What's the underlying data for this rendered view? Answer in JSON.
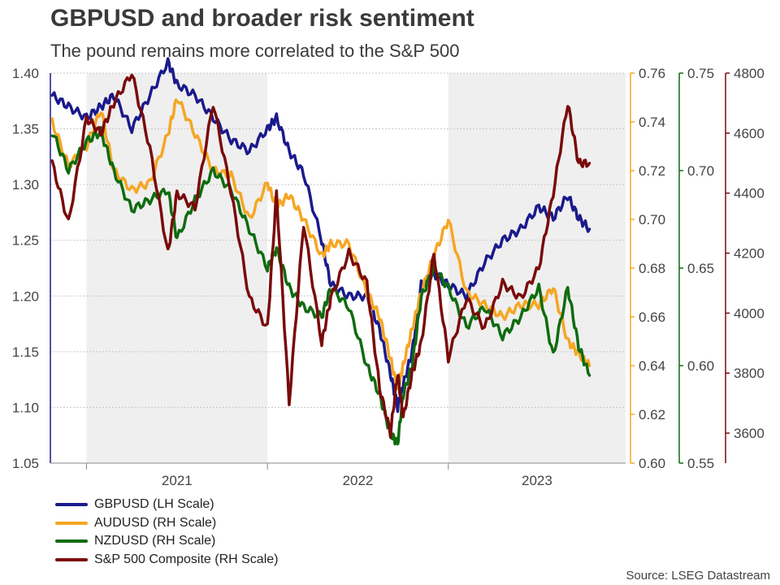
{
  "title": "GBPUSD and broader risk sentiment",
  "subtitle": "The pound remains more correlated to the S&P 500",
  "source": "Source: LSEG Datastream",
  "chart_data": {
    "type": "line",
    "x_ticks": [
      "2021",
      "2022",
      "2023"
    ],
    "xlim": [
      2020.8,
      2023.98
    ],
    "shaded_years": [
      2021,
      2023
    ],
    "grid": "horizontal dashed",
    "legend_position": "bottom-left",
    "axes": {
      "gbpusd": {
        "label": "LH Scale",
        "min": 1.05,
        "max": 1.4,
        "ticks": [
          "1.05",
          "1.10",
          "1.15",
          "1.20",
          "1.25",
          "1.30",
          "1.35",
          "1.40"
        ],
        "color": "#1a1a8c"
      },
      "audusd": {
        "label": "RH Scale",
        "min": 0.6,
        "max": 0.76,
        "ticks": [
          "0.60",
          "0.62",
          "0.64",
          "0.66",
          "0.68",
          "0.70",
          "0.72",
          "0.74",
          "0.76"
        ],
        "color": "#f5a623"
      },
      "nzdusd": {
        "label": "RH Scale",
        "min": 0.55,
        "max": 0.75,
        "ticks": [
          "0.55",
          "0.60",
          "0.65",
          "0.70",
          "0.75"
        ],
        "color": "#0f6b0f"
      },
      "spx": {
        "label": "RH Scale",
        "min": 3500,
        "max": 4800,
        "ticks": [
          "3600",
          "3800",
          "4000",
          "4200",
          "4400",
          "4600",
          "4800"
        ],
        "color": "#7a0a0a"
      }
    },
    "series": [
      {
        "name": "GBPUSD (LH Scale)",
        "axis": "gbpusd",
        "color": "#1a1a8c",
        "x": [
          2020.81,
          2020.9,
          2021.0,
          2021.08,
          2021.15,
          2021.25,
          2021.35,
          2021.45,
          2021.5,
          2021.6,
          2021.7,
          2021.8,
          2021.9,
          2022.0,
          2022.05,
          2022.12,
          2022.2,
          2022.3,
          2022.35,
          2022.45,
          2022.55,
          2022.62,
          2022.68,
          2022.72,
          2022.75,
          2022.8,
          2022.85,
          2022.92,
          2023.0,
          2023.1,
          2023.2,
          2023.3,
          2023.4,
          2023.5,
          2023.58,
          2023.66,
          2023.72,
          2023.78
        ],
        "y": [
          1.38,
          1.37,
          1.36,
          1.37,
          1.38,
          1.35,
          1.38,
          1.41,
          1.39,
          1.38,
          1.36,
          1.34,
          1.33,
          1.35,
          1.36,
          1.33,
          1.31,
          1.25,
          1.21,
          1.2,
          1.2,
          1.17,
          1.13,
          1.1,
          1.12,
          1.15,
          1.21,
          1.22,
          1.21,
          1.2,
          1.23,
          1.25,
          1.26,
          1.28,
          1.27,
          1.29,
          1.27,
          1.26
        ]
      },
      {
        "name": "AUDUSD (RH Scale)",
        "axis": "audusd",
        "color": "#f5a623",
        "x": [
          2020.81,
          2020.9,
          2021.0,
          2021.08,
          2021.15,
          2021.25,
          2021.35,
          2021.45,
          2021.5,
          2021.6,
          2021.7,
          2021.8,
          2021.9,
          2022.0,
          2022.05,
          2022.12,
          2022.2,
          2022.3,
          2022.35,
          2022.45,
          2022.55,
          2022.62,
          2022.68,
          2022.72,
          2022.75,
          2022.8,
          2022.85,
          2022.92,
          2023.0,
          2023.1,
          2023.2,
          2023.3,
          2023.4,
          2023.5,
          2023.58,
          2023.66,
          2023.72,
          2023.78
        ],
        "y": [
          0.74,
          0.722,
          0.73,
          0.745,
          0.72,
          0.712,
          0.715,
          0.735,
          0.75,
          0.735,
          0.72,
          0.718,
          0.7,
          0.715,
          0.705,
          0.71,
          0.7,
          0.685,
          0.69,
          0.69,
          0.67,
          0.66,
          0.643,
          0.63,
          0.64,
          0.655,
          0.67,
          0.685,
          0.7,
          0.67,
          0.665,
          0.66,
          0.665,
          0.665,
          0.672,
          0.65,
          0.645,
          0.64
        ]
      },
      {
        "name": "NZDUSD (RH Scale)",
        "axis": "nzdusd",
        "color": "#0f6b0f",
        "x": [
          2020.81,
          2020.9,
          2021.0,
          2021.08,
          2021.15,
          2021.25,
          2021.35,
          2021.45,
          2021.5,
          2021.6,
          2021.7,
          2021.8,
          2021.9,
          2022.0,
          2022.05,
          2022.12,
          2022.2,
          2022.3,
          2022.35,
          2022.45,
          2022.55,
          2022.62,
          2022.68,
          2022.72,
          2022.75,
          2022.8,
          2022.85,
          2022.92,
          2023.0,
          2023.1,
          2023.2,
          2023.3,
          2023.4,
          2023.5,
          2023.58,
          2023.66,
          2023.72,
          2023.78
        ],
        "y": [
          0.72,
          0.7,
          0.715,
          0.72,
          0.7,
          0.68,
          0.685,
          0.69,
          0.665,
          0.685,
          0.7,
          0.69,
          0.67,
          0.65,
          0.66,
          0.64,
          0.63,
          0.625,
          0.64,
          0.63,
          0.6,
          0.585,
          0.565,
          0.56,
          0.585,
          0.6,
          0.635,
          0.65,
          0.64,
          0.62,
          0.63,
          0.615,
          0.625,
          0.64,
          0.605,
          0.64,
          0.61,
          0.595
        ]
      },
      {
        "name": "S&P 500 Composite (RH Scale)",
        "axis": "spx",
        "color": "#7a0a0a",
        "x": [
          2020.81,
          2020.9,
          2021.0,
          2021.08,
          2021.15,
          2021.25,
          2021.35,
          2021.45,
          2021.5,
          2021.6,
          2021.7,
          2021.8,
          2021.9,
          2022.0,
          2022.05,
          2022.12,
          2022.2,
          2022.3,
          2022.35,
          2022.45,
          2022.55,
          2022.62,
          2022.68,
          2022.72,
          2022.75,
          2022.8,
          2022.85,
          2022.92,
          2023.0,
          2023.1,
          2023.2,
          2023.3,
          2023.4,
          2023.5,
          2023.58,
          2023.66,
          2023.72,
          2023.78
        ],
        "y": [
          4500,
          4300,
          4650,
          4600,
          4700,
          4800,
          4550,
          4200,
          4400,
          4350,
          4700,
          4400,
          4050,
          3950,
          4400,
          3700,
          4300,
          3900,
          4050,
          4200,
          4100,
          3750,
          3600,
          3800,
          3650,
          3800,
          3900,
          4200,
          3850,
          4050,
          3950,
          4100,
          4050,
          4150,
          4400,
          4700,
          4500,
          4500
        ]
      }
    ]
  }
}
